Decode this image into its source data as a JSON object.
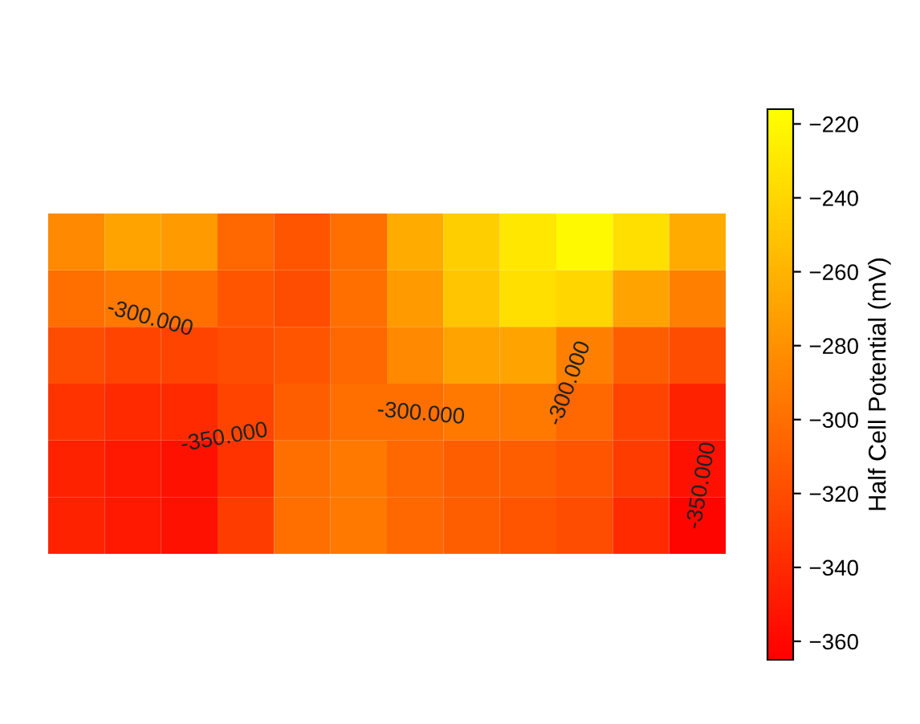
{
  "chart_data": {
    "type": "heatmap",
    "clabel": "Half Cell Potential (mV)",
    "categories": [
      null,
      null,
      null,
      null,
      null,
      null,
      null,
      null,
      null,
      null,
      null,
      null
    ],
    "y_categories": [
      null,
      null,
      null,
      null,
      null,
      null
    ],
    "cells": [
      [
        -285,
        -270,
        -275,
        -305,
        -315,
        -300,
        -265,
        -245,
        -230,
        -220,
        -235,
        -265
      ],
      [
        -300,
        -295,
        -300,
        -315,
        -320,
        -300,
        -275,
        -250,
        -235,
        -240,
        -270,
        -290
      ],
      [
        -320,
        -325,
        -325,
        -320,
        -315,
        -305,
        -285,
        -270,
        -270,
        -290,
        -310,
        -320
      ],
      [
        -335,
        -340,
        -340,
        -325,
        -310,
        -300,
        -300,
        -295,
        -295,
        -305,
        -325,
        -345
      ],
      [
        -345,
        -350,
        -355,
        -335,
        -300,
        -295,
        -305,
        -310,
        -310,
        -315,
        -330,
        -355
      ],
      [
        -345,
        -350,
        -355,
        -330,
        -300,
        -295,
        -305,
        -310,
        -315,
        -320,
        -340,
        -362
      ]
    ],
    "clim": [
      -365,
      -216
    ],
    "cticks": [
      -360,
      -340,
      -320,
      -300,
      -280,
      -260,
      -240,
      -220
    ],
    "annotations": [
      "-300.000",
      "-300.000",
      "-300.000",
      "-350.000",
      "-350.000"
    ]
  }
}
